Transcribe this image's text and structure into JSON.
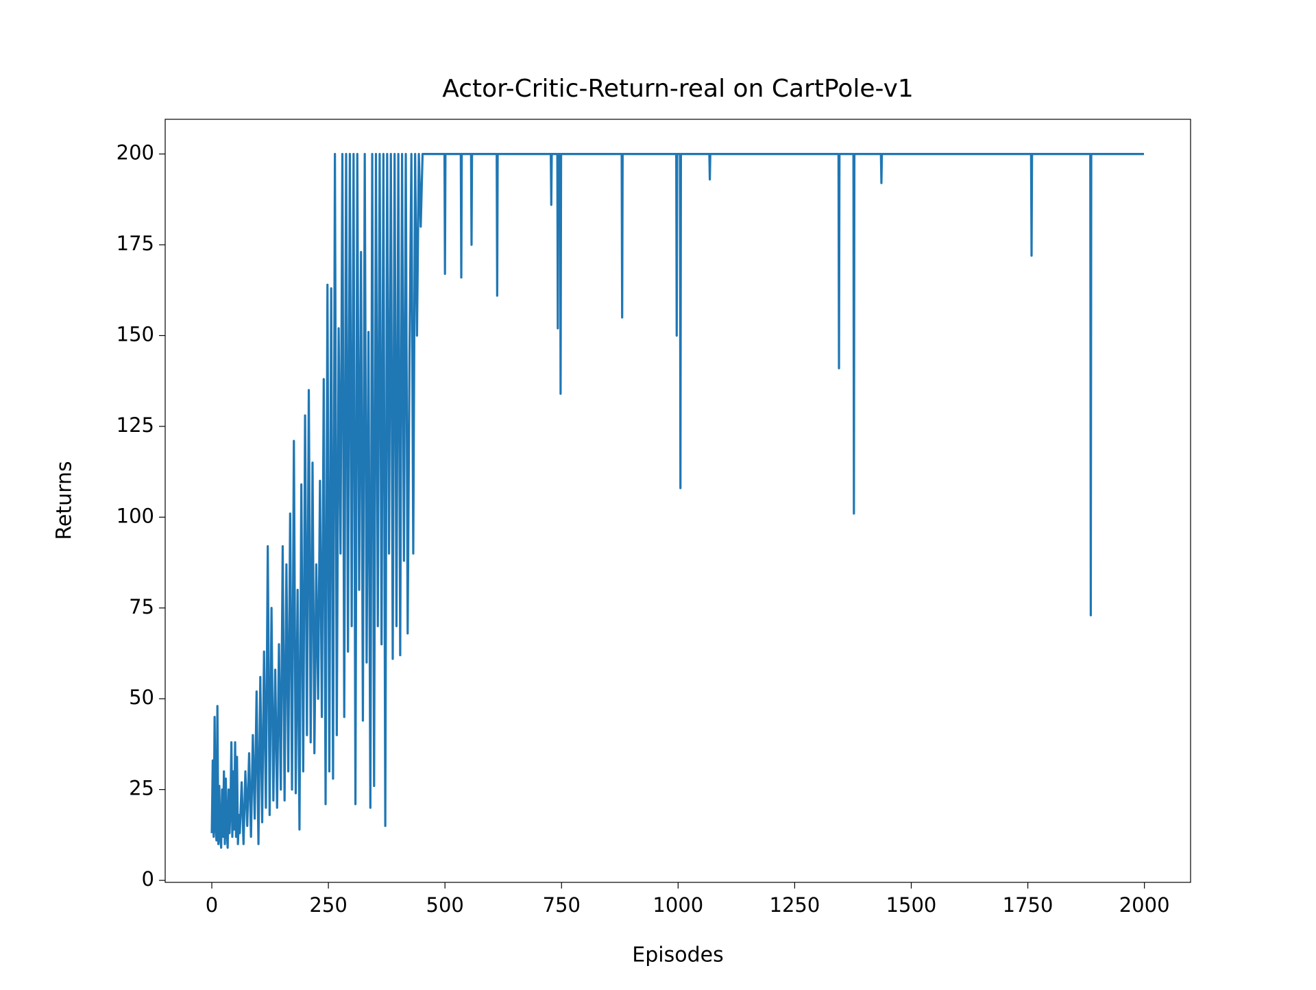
{
  "chart_data": {
    "type": "line",
    "title": "Actor-Critic-Return-real on CartPole-v1",
    "xlabel": "Episodes",
    "ylabel": "Returns",
    "xlim": [
      -100,
      2099
    ],
    "ylim": [
      -0.55,
      209.55
    ],
    "xticks": [
      0,
      250,
      500,
      750,
      1000,
      1250,
      1500,
      1750,
      2000
    ],
    "yticks": [
      0,
      25,
      50,
      75,
      100,
      125,
      150,
      175,
      200
    ],
    "series": [
      {
        "name": "Returns",
        "color": "#1f77b4",
        "x": [
          0,
          2,
          4,
          6,
          8,
          10,
          12,
          14,
          16,
          18,
          20,
          22,
          24,
          26,
          28,
          30,
          32,
          34,
          36,
          38,
          40,
          42,
          44,
          46,
          48,
          50,
          52,
          54,
          56,
          58,
          60,
          64,
          68,
          72,
          76,
          80,
          84,
          88,
          92,
          96,
          100,
          104,
          108,
          112,
          116,
          120,
          124,
          128,
          132,
          136,
          140,
          144,
          148,
          152,
          156,
          160,
          164,
          168,
          172,
          176,
          180,
          184,
          188,
          192,
          196,
          200,
          204,
          208,
          212,
          216,
          220,
          224,
          228,
          232,
          236,
          240,
          244,
          248,
          252,
          256,
          260,
          264,
          268,
          272,
          276,
          280,
          284,
          288,
          292,
          296,
          300,
          304,
          308,
          312,
          316,
          320,
          324,
          328,
          332,
          336,
          340,
          344,
          348,
          352,
          356,
          360,
          364,
          368,
          372,
          376,
          380,
          384,
          388,
          392,
          396,
          400,
          404,
          408,
          412,
          416,
          420,
          424,
          428,
          432,
          436,
          440,
          444,
          448,
          452,
          460,
          499,
          500,
          501,
          534,
          535,
          536,
          556,
          557,
          558,
          611,
          612,
          613,
          727,
          728,
          729,
          741,
          742,
          743,
          747,
          748,
          749,
          879,
          880,
          881,
          996,
          997,
          998,
          1004,
          1005,
          1006,
          1067,
          1068,
          1069,
          1344,
          1345,
          1346,
          1376,
          1377,
          1378,
          1435,
          1436,
          1437,
          1757,
          1758,
          1759,
          1884,
          1885,
          1886,
          1999
        ],
        "values": [
          13,
          33,
          12,
          45,
          15,
          11,
          48,
          10,
          26,
          12,
          9,
          25,
          12,
          30,
          10,
          28,
          14,
          9,
          25,
          13,
          20,
          38,
          12,
          30,
          14,
          38,
          12,
          34,
          10,
          18,
          13,
          27,
          10,
          30,
          15,
          35,
          12,
          40,
          17,
          52,
          10,
          56,
          16,
          63,
          20,
          92,
          18,
          75,
          22,
          58,
          20,
          65,
          25,
          92,
          22,
          87,
          30,
          101,
          25,
          121,
          24,
          80,
          14,
          109,
          30,
          128,
          40,
          135,
          38,
          115,
          35,
          87,
          50,
          110,
          45,
          138,
          21,
          164,
          30,
          163,
          28,
          200,
          40,
          152,
          90,
          200,
          45,
          200,
          63,
          200,
          70,
          200,
          21,
          200,
          80,
          173,
          44,
          200,
          60,
          151,
          20,
          200,
          26,
          200,
          70,
          200,
          65,
          200,
          15,
          200,
          90,
          200,
          61,
          200,
          70,
          200,
          62,
          200,
          88,
          200,
          68,
          145,
          200,
          90,
          200,
          150,
          200,
          180,
          200,
          200,
          200,
          167,
          200,
          200,
          166,
          200,
          200,
          175,
          200,
          200,
          161,
          200,
          200,
          186,
          200,
          200,
          152,
          200,
          200,
          134,
          200,
          200,
          155,
          200,
          200,
          150,
          200,
          200,
          108,
          200,
          200,
          193,
          200,
          200,
          141,
          200,
          200,
          101,
          200,
          200,
          192,
          200,
          200,
          172,
          200,
          200,
          73,
          200,
          200
        ]
      }
    ]
  }
}
